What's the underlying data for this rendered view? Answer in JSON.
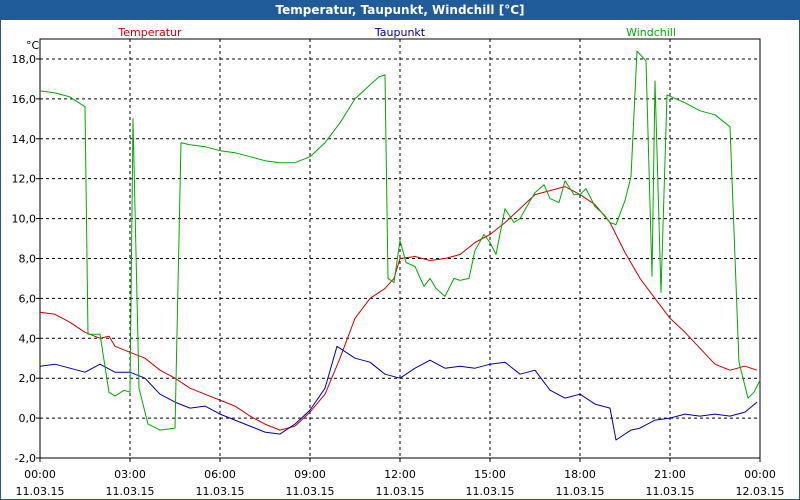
{
  "window": {
    "title": "Temperatur, Taupunkt, Windchill [°C]"
  },
  "chart_data": {
    "type": "line",
    "title": "Temperatur, Taupunkt, Windchill [°C]",
    "ylabel": "°C",
    "xlabel": "",
    "ylim": [
      -2,
      19
    ],
    "xlim": [
      0,
      24
    ],
    "grid": true,
    "yticks": [
      -2,
      0,
      2,
      4,
      6,
      8,
      10,
      12,
      14,
      16,
      18
    ],
    "ytick_labels": [
      "-2,0",
      "0,0",
      "2,0",
      "4,0",
      "6,0",
      "8,0",
      "10,0",
      "12,0",
      "14,0",
      "16,0",
      "18,0"
    ],
    "xticks": [
      0,
      3,
      6,
      9,
      12,
      15,
      18,
      21,
      24
    ],
    "xtick_labels": [
      {
        "time": "00:00",
        "date": "11.03.15"
      },
      {
        "time": "03:00",
        "date": "11.03.15"
      },
      {
        "time": "06:00",
        "date": "11.03.15"
      },
      {
        "time": "09:00",
        "date": "11.03.15"
      },
      {
        "time": "12:00",
        "date": "11.03.15"
      },
      {
        "time": "15:00",
        "date": "11.03.15"
      },
      {
        "time": "18:00",
        "date": "11.03.15"
      },
      {
        "time": "21:00",
        "date": "11.03.15"
      },
      {
        "time": "00:00",
        "date": "12.03.15"
      }
    ],
    "series": [
      {
        "name": "Temperatur",
        "color": "#cc0000",
        "points": [
          [
            0,
            5.3
          ],
          [
            0.5,
            5.2
          ],
          [
            1,
            4.8
          ],
          [
            1.5,
            4.3
          ],
          [
            2,
            4.0
          ],
          [
            2.3,
            4.1
          ],
          [
            2.5,
            3.6
          ],
          [
            3,
            3.3
          ],
          [
            3.5,
            3.0
          ],
          [
            4,
            2.4
          ],
          [
            4.5,
            2.0
          ],
          [
            5,
            1.5
          ],
          [
            5.5,
            1.2
          ],
          [
            6,
            0.9
          ],
          [
            6.5,
            0.6
          ],
          [
            7,
            0.1
          ],
          [
            7.5,
            -0.3
          ],
          [
            8,
            -0.6
          ],
          [
            8.5,
            -0.4
          ],
          [
            9,
            0.3
          ],
          [
            9.5,
            1.2
          ],
          [
            10,
            3.0
          ],
          [
            10.5,
            5.0
          ],
          [
            11,
            6.0
          ],
          [
            11.5,
            6.5
          ],
          [
            11.8,
            7.0
          ],
          [
            12,
            8.0
          ],
          [
            12.5,
            8.1
          ],
          [
            13,
            7.9
          ],
          [
            13.5,
            8.0
          ],
          [
            14,
            8.2
          ],
          [
            14.5,
            8.8
          ],
          [
            15,
            9.2
          ],
          [
            15.5,
            9.8
          ],
          [
            16,
            10.5
          ],
          [
            16.5,
            11.2
          ],
          [
            17,
            11.4
          ],
          [
            17.5,
            11.6
          ],
          [
            18,
            11.2
          ],
          [
            18.5,
            10.7
          ],
          [
            19,
            9.8
          ],
          [
            19.5,
            8.3
          ],
          [
            20,
            7.0
          ],
          [
            20.5,
            6.0
          ],
          [
            21,
            5.0
          ],
          [
            21.5,
            4.3
          ],
          [
            22,
            3.5
          ],
          [
            22.5,
            2.7
          ],
          [
            23,
            2.4
          ],
          [
            23.5,
            2.6
          ],
          [
            23.9,
            2.4
          ]
        ]
      },
      {
        "name": "Taupunkt",
        "color": "#0000aa",
        "points": [
          [
            0,
            2.6
          ],
          [
            0.5,
            2.7
          ],
          [
            1,
            2.5
          ],
          [
            1.5,
            2.3
          ],
          [
            2,
            2.7
          ],
          [
            2.5,
            2.3
          ],
          [
            3,
            2.3
          ],
          [
            3.5,
            2.0
          ],
          [
            4,
            1.2
          ],
          [
            4.5,
            0.8
          ],
          [
            5,
            0.5
          ],
          [
            5.5,
            0.6
          ],
          [
            6,
            0.2
          ],
          [
            6.5,
            -0.1
          ],
          [
            7,
            -0.4
          ],
          [
            7.5,
            -0.7
          ],
          [
            8,
            -0.8
          ],
          [
            8.5,
            -0.3
          ],
          [
            9,
            0.4
          ],
          [
            9.5,
            1.5
          ],
          [
            9.9,
            3.6
          ],
          [
            10.5,
            3.0
          ],
          [
            11,
            2.8
          ],
          [
            11.5,
            2.2
          ],
          [
            12,
            2.0
          ],
          [
            12.5,
            2.5
          ],
          [
            13,
            2.9
          ],
          [
            13.5,
            2.5
          ],
          [
            14,
            2.6
          ],
          [
            14.5,
            2.5
          ],
          [
            15,
            2.7
          ],
          [
            15.5,
            2.8
          ],
          [
            16,
            2.2
          ],
          [
            16.5,
            2.4
          ],
          [
            17,
            1.4
          ],
          [
            17.5,
            1.0
          ],
          [
            18,
            1.2
          ],
          [
            18.5,
            0.7
          ],
          [
            19,
            0.5
          ],
          [
            19.2,
            -1.1
          ],
          [
            19.7,
            -0.6
          ],
          [
            20,
            -0.5
          ],
          [
            20.5,
            -0.1
          ],
          [
            21,
            0.0
          ],
          [
            21.5,
            0.2
          ],
          [
            22,
            0.1
          ],
          [
            22.5,
            0.2
          ],
          [
            23,
            0.1
          ],
          [
            23.5,
            0.3
          ],
          [
            23.9,
            0.8
          ]
        ]
      },
      {
        "name": "Windchill",
        "color": "#00aa00",
        "points": [
          [
            0,
            16.4
          ],
          [
            0.5,
            16.3
          ],
          [
            1,
            16.1
          ],
          [
            1.5,
            15.6
          ],
          [
            1.6,
            4.2
          ],
          [
            2,
            4.2
          ],
          [
            2.3,
            1.3
          ],
          [
            2.5,
            1.1
          ],
          [
            2.8,
            1.4
          ],
          [
            3,
            1.3
          ],
          [
            3.1,
            15.0
          ],
          [
            3.3,
            1.5
          ],
          [
            3.6,
            -0.3
          ],
          [
            4,
            -0.6
          ],
          [
            4.5,
            -0.5
          ],
          [
            4.7,
            13.8
          ],
          [
            5,
            13.7
          ],
          [
            5.5,
            13.6
          ],
          [
            6,
            13.4
          ],
          [
            6.5,
            13.3
          ],
          [
            7,
            13.1
          ],
          [
            7.5,
            12.9
          ],
          [
            8,
            12.8
          ],
          [
            8.5,
            12.8
          ],
          [
            9,
            13.1
          ],
          [
            9.5,
            13.8
          ],
          [
            10,
            14.8
          ],
          [
            10.5,
            16.0
          ],
          [
            11,
            16.7
          ],
          [
            11.3,
            17.1
          ],
          [
            11.5,
            17.2
          ],
          [
            11.6,
            7.0
          ],
          [
            11.8,
            6.8
          ],
          [
            12,
            8.9
          ],
          [
            12.2,
            7.8
          ],
          [
            12.5,
            7.6
          ],
          [
            12.8,
            6.6
          ],
          [
            13,
            7.0
          ],
          [
            13.2,
            6.5
          ],
          [
            13.5,
            6.1
          ],
          [
            13.8,
            7.0
          ],
          [
            14,
            6.9
          ],
          [
            14.3,
            7.0
          ],
          [
            14.5,
            8.4
          ],
          [
            14.8,
            9.2
          ],
          [
            15,
            8.8
          ],
          [
            15.2,
            8.2
          ],
          [
            15.5,
            10.5
          ],
          [
            15.8,
            9.8
          ],
          [
            16,
            10.0
          ],
          [
            16.3,
            10.8
          ],
          [
            16.5,
            11.3
          ],
          [
            16.8,
            11.7
          ],
          [
            17,
            11.0
          ],
          [
            17.3,
            10.8
          ],
          [
            17.5,
            11.9
          ],
          [
            17.8,
            11.2
          ],
          [
            18,
            11.2
          ],
          [
            18.2,
            11.5
          ],
          [
            18.5,
            10.6
          ],
          [
            18.8,
            10.2
          ],
          [
            19,
            9.8
          ],
          [
            19.2,
            9.7
          ],
          [
            19.5,
            10.9
          ],
          [
            19.7,
            12.1
          ],
          [
            19.9,
            18.4
          ],
          [
            20.2,
            17.9
          ],
          [
            20.4,
            7.1
          ],
          [
            20.5,
            16.9
          ],
          [
            20.7,
            6.3
          ],
          [
            20.9,
            16.2
          ],
          [
            21.5,
            15.8
          ],
          [
            22,
            15.4
          ],
          [
            22.5,
            15.2
          ],
          [
            23,
            14.6
          ],
          [
            23.3,
            2.8
          ],
          [
            23.6,
            1.0
          ],
          [
            23.8,
            1.3
          ],
          [
            24,
            1.9
          ]
        ]
      }
    ],
    "legend": [
      "Temperatur",
      "Taupunkt",
      "Windchill"
    ],
    "legend_position": "top"
  }
}
